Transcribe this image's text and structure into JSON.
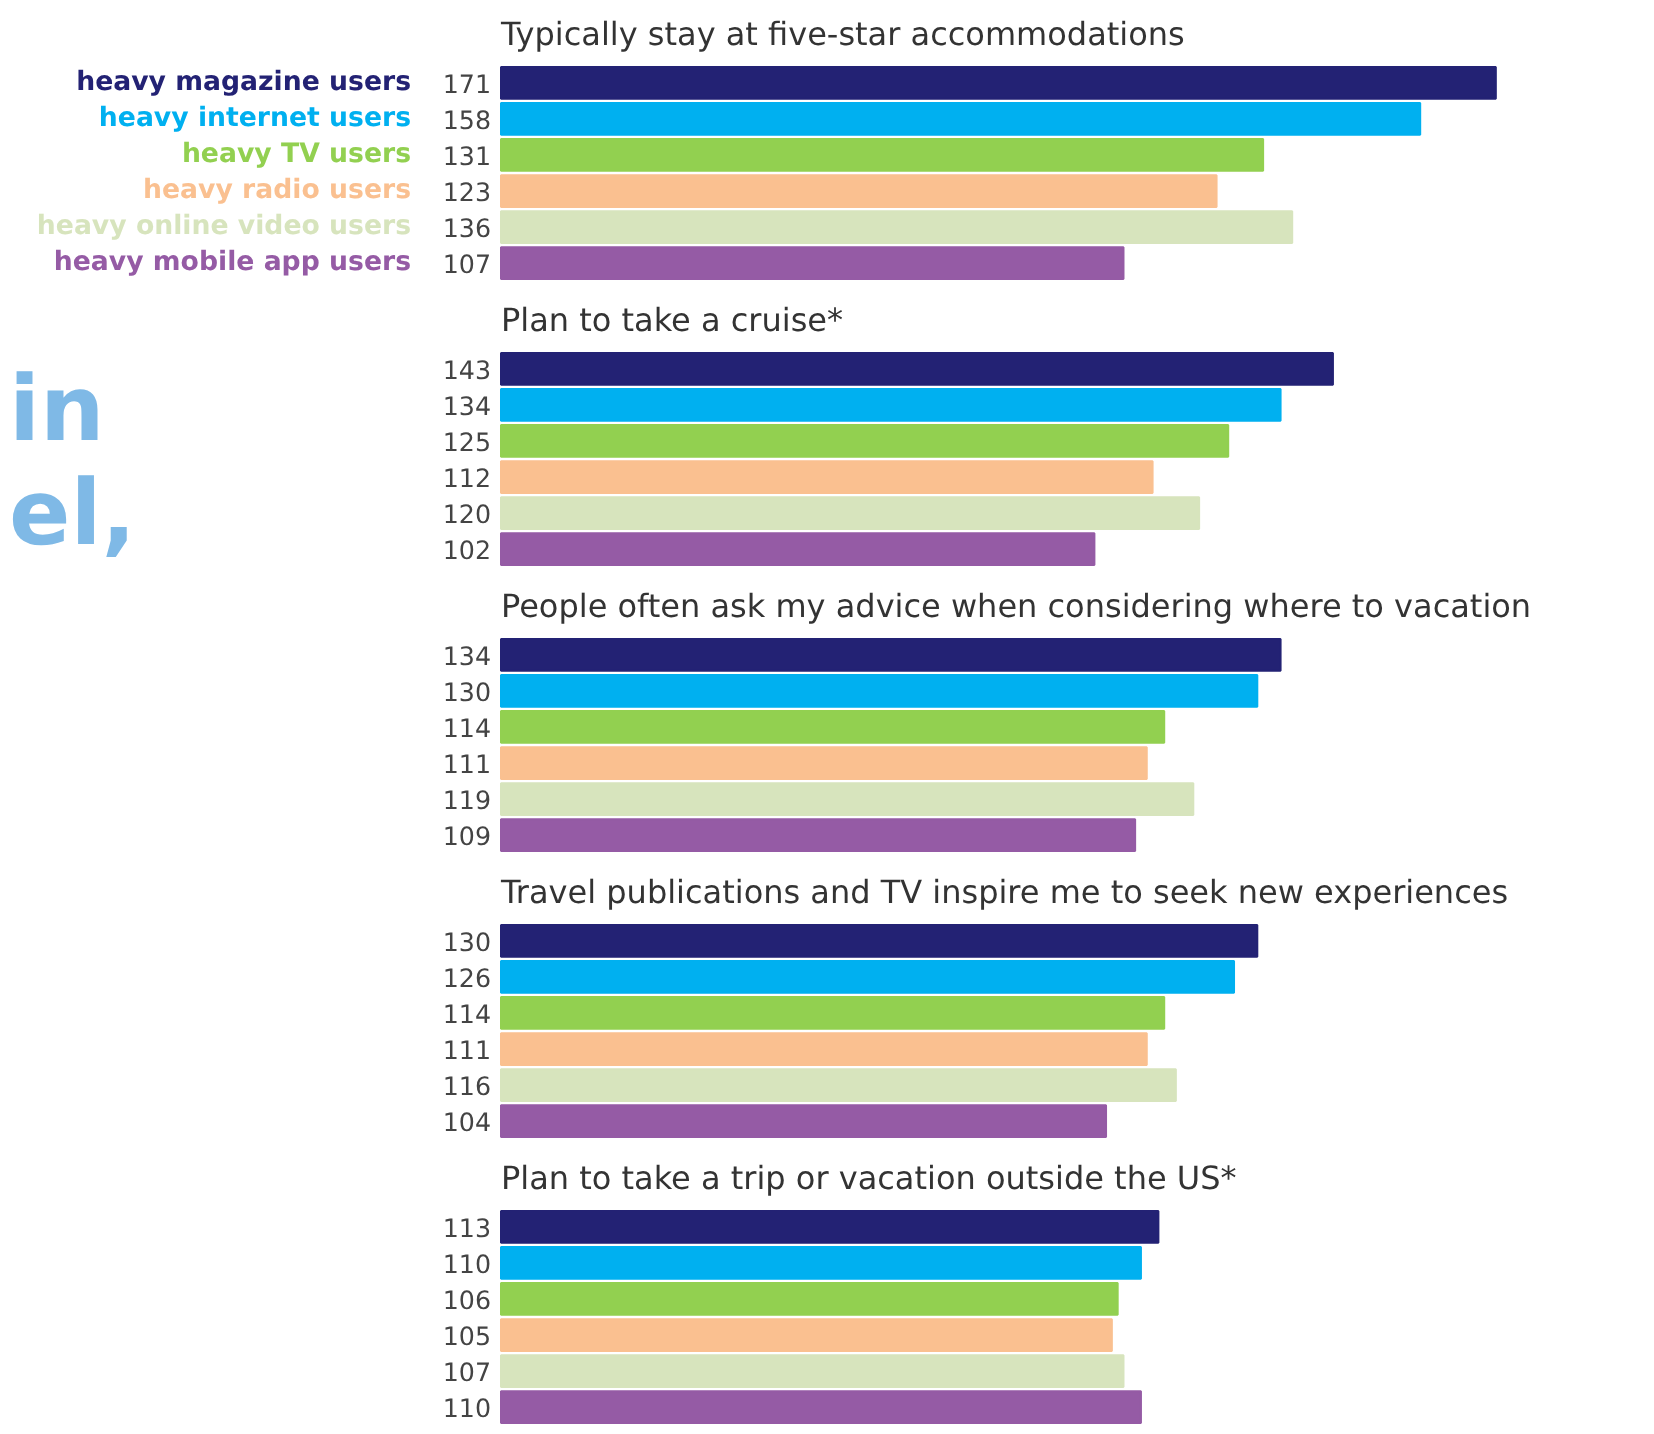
{
  "chart_data": [
    {
      "type": "bar",
      "orientation": "horizontal",
      "title": "Typically stay at five-star accommodations",
      "categories": [
        null
      ],
      "data_labels": true,
      "series": [
        {
          "name": "heavy magazine users",
          "color": "#232274",
          "values": [
            171
          ]
        },
        {
          "name": "heavy internet users",
          "color": "#00b0f0",
          "values": [
            158
          ]
        },
        {
          "name": "heavy TV users",
          "color": "#92d050",
          "values": [
            131
          ]
        },
        {
          "name": "heavy radio users",
          "color": "#fac090",
          "values": [
            123
          ]
        },
        {
          "name": "heavy online video users",
          "color": "#d7e4bd",
          "values": [
            136
          ]
        },
        {
          "name": "heavy mobile app users",
          "color": "#955ba5",
          "values": [
            107
          ]
        }
      ]
    },
    {
      "type": "bar",
      "orientation": "horizontal",
      "title": "Plan to take a cruise*",
      "categories": [
        null
      ],
      "data_labels": true,
      "annotations": [
        "in",
        "el,"
      ],
      "series": [
        {
          "color": "#232274",
          "values": [
            143
          ]
        },
        {
          "color": "#00b0f0",
          "values": [
            134
          ]
        },
        {
          "color": "#92d050",
          "values": [
            125
          ]
        },
        {
          "color": "#fac090",
          "values": [
            112
          ]
        },
        {
          "color": "#d7e4bd",
          "values": [
            120
          ]
        },
        {
          "color": "#955ba5",
          "values": [
            102
          ]
        }
      ]
    },
    {
      "type": "bar",
      "orientation": "horizontal",
      "title": "People often ask my advice when considering where to vacation",
      "categories": [
        null
      ],
      "data_labels": true,
      "series": [
        {
          "color": "#232274",
          "values": [
            134
          ]
        },
        {
          "color": "#00b0f0",
          "values": [
            130
          ]
        },
        {
          "color": "#92d050",
          "values": [
            114
          ]
        },
        {
          "color": "#fac090",
          "values": [
            111
          ]
        },
        {
          "color": "#d7e4bd",
          "values": [
            119
          ]
        },
        {
          "color": "#955ba5",
          "values": [
            109
          ]
        }
      ]
    },
    {
      "type": "bar",
      "orientation": "horizontal",
      "title": "Travel publications and TV inspire me to seek new experiences",
      "categories": [
        null
      ],
      "data_labels": true,
      "series": [
        {
          "color": "#232274",
          "values": [
            130
          ]
        },
        {
          "color": "#00b0f0",
          "values": [
            126
          ]
        },
        {
          "color": "#92d050",
          "values": [
            114
          ]
        },
        {
          "color": "#fac090",
          "values": [
            111
          ]
        },
        {
          "color": "#d7e4bd",
          "values": [
            116
          ]
        },
        {
          "color": "#955ba5",
          "values": [
            104
          ]
        }
      ]
    },
    {
      "type": "bar",
      "orientation": "horizontal",
      "title": "Plan to take a trip or vacation outside the US*",
      "categories": [
        null
      ],
      "data_labels": true,
      "series": [
        {
          "color": "#232274",
          "values": [
            113
          ]
        },
        {
          "color": "#00b0f0",
          "values": [
            110
          ]
        },
        {
          "color": "#92d050",
          "values": [
            106
          ]
        },
        {
          "color": "#fac090",
          "values": [
            105
          ]
        },
        {
          "color": "#d7e4bd",
          "values": [
            107
          ]
        },
        {
          "color": "#955ba5",
          "values": [
            110
          ]
        }
      ]
    }
  ]
}
